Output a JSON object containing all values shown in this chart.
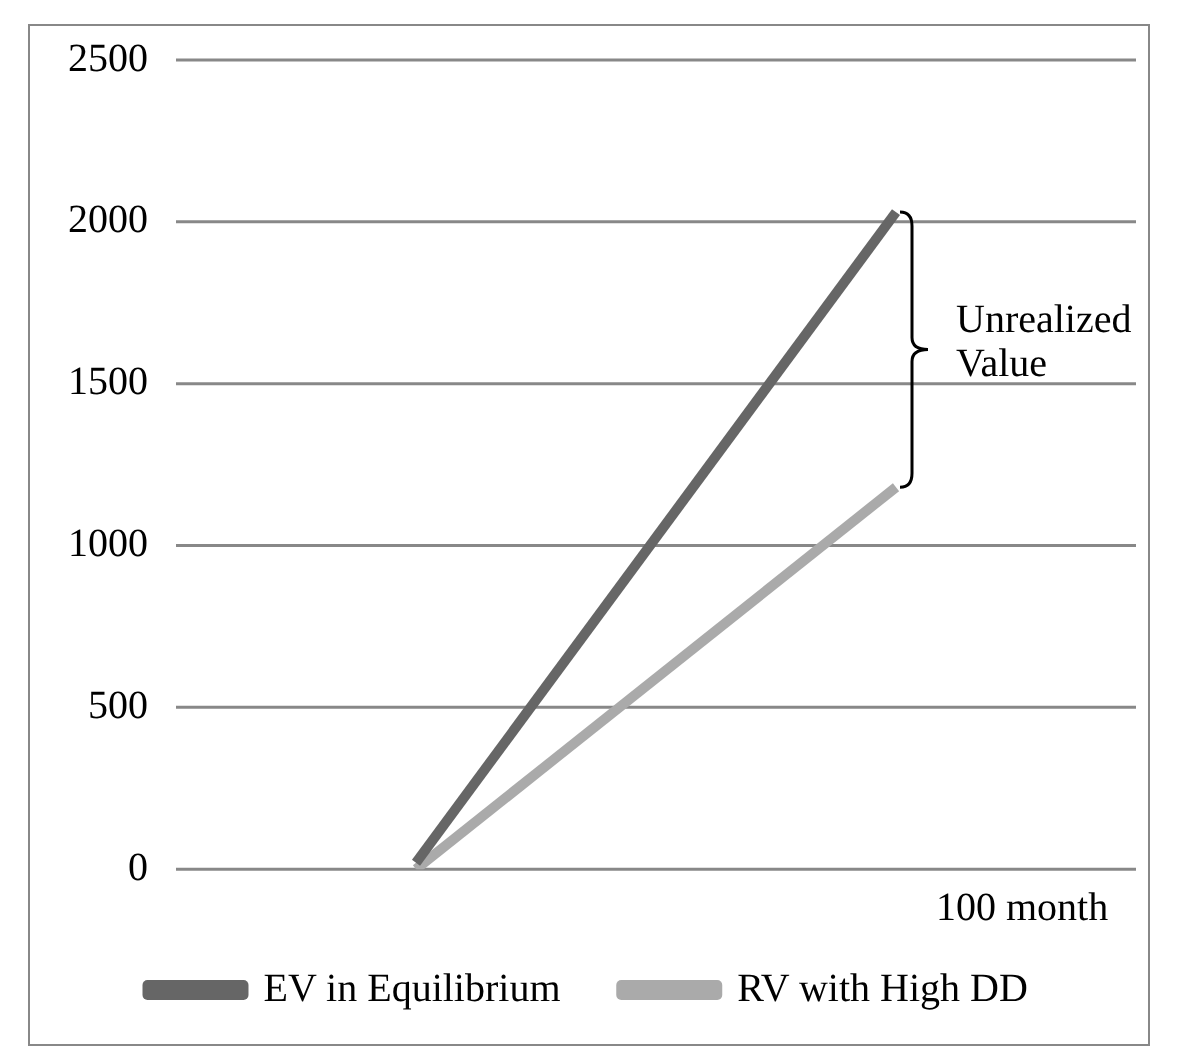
{
  "chart_data": {
    "type": "line",
    "categories": [
      null,
      null
    ],
    "xlabel": "100 month",
    "series": [
      {
        "name": "EV in Equilibrium",
        "color": "#666666",
        "values": [
          20,
          2030
        ]
      },
      {
        "name": "RV with High DD",
        "color": "#aaaaaa",
        "values": [
          0,
          1180
        ]
      }
    ],
    "ylim": [
      0,
      2500
    ],
    "yticks": [
      0,
      500,
      1000,
      1500,
      2000,
      2500
    ],
    "grid": "y",
    "legend": "bottom",
    "marker": "none",
    "line_style": "solid",
    "annotations": [
      "Unrealized Value"
    ]
  }
}
